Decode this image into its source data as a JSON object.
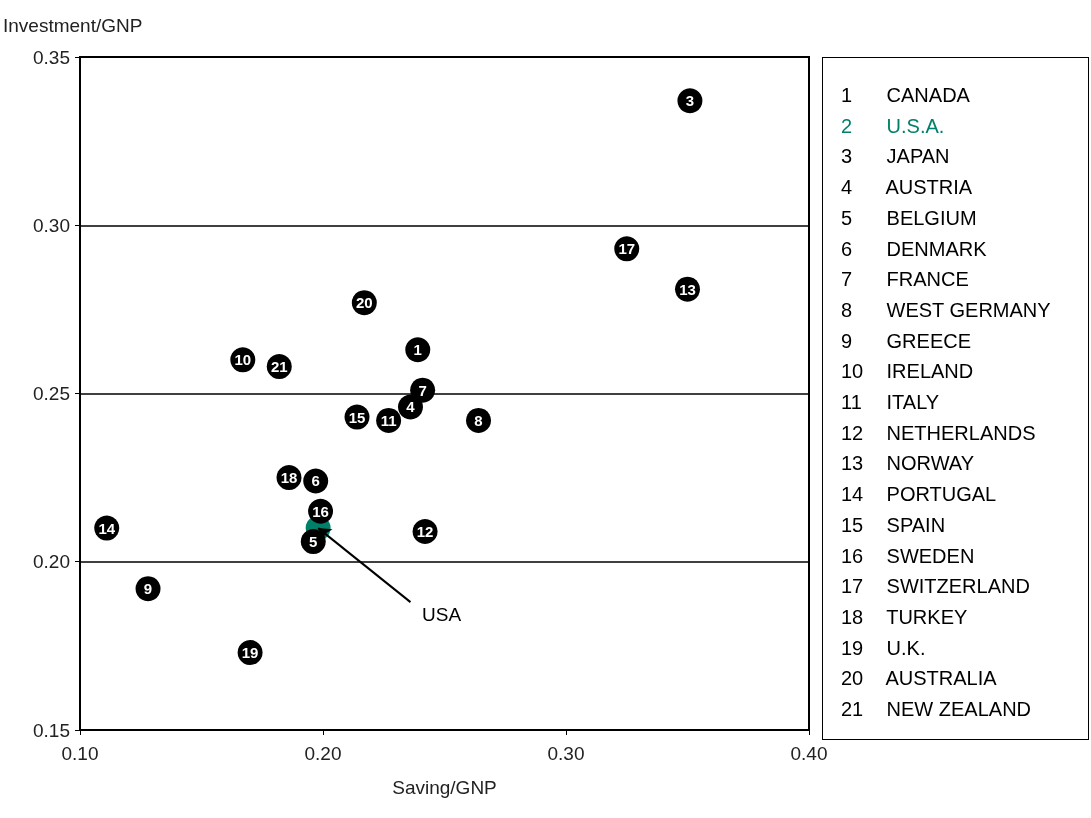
{
  "chart_data": {
    "type": "scatter",
    "xlabel": "Saving/GNP",
    "ylabel": "Investment/GNP",
    "xlim": [
      0.1,
      0.4
    ],
    "ylim": [
      0.15,
      0.35
    ],
    "xticks": [
      {
        "value": 0.1,
        "label": "0.10"
      },
      {
        "value": 0.2,
        "label": "0.20"
      },
      {
        "value": 0.3,
        "label": "0.30"
      },
      {
        "value": 0.4,
        "label": "0.40"
      }
    ],
    "yticks": [
      {
        "value": 0.15,
        "label": "0.15"
      },
      {
        "value": 0.2,
        "label": "0.20"
      },
      {
        "value": 0.25,
        "label": "0.25"
      },
      {
        "value": 0.3,
        "label": "0.30"
      },
      {
        "value": 0.35,
        "label": "0.35"
      }
    ],
    "grid": "y",
    "marker": "circle",
    "annotations": [
      {
        "text": "USA",
        "x": 0.198,
        "y": 0.21
      },
      {
        "text": "1",
        "x": 0.239,
        "y": 0.263
      },
      {
        "text": "3",
        "x": 0.351,
        "y": 0.337
      },
      {
        "text": "4",
        "x": 0.236,
        "y": 0.246
      },
      {
        "text": "5",
        "x": 0.196,
        "y": 0.206
      },
      {
        "text": "6",
        "x": 0.197,
        "y": 0.224
      },
      {
        "text": "7",
        "x": 0.241,
        "y": 0.251
      },
      {
        "text": "8",
        "x": 0.264,
        "y": 0.242
      },
      {
        "text": "9",
        "x": 0.128,
        "y": 0.192
      },
      {
        "text": "10",
        "x": 0.167,
        "y": 0.26
      },
      {
        "text": "11",
        "x": 0.227,
        "y": 0.242
      },
      {
        "text": "12",
        "x": 0.242,
        "y": 0.209
      },
      {
        "text": "13",
        "x": 0.35,
        "y": 0.281
      },
      {
        "text": "14",
        "x": 0.111,
        "y": 0.21
      },
      {
        "text": "15",
        "x": 0.214,
        "y": 0.243
      },
      {
        "text": "16",
        "x": 0.199,
        "y": 0.215
      },
      {
        "text": "17",
        "x": 0.325,
        "y": 0.293
      },
      {
        "text": "18",
        "x": 0.186,
        "y": 0.225
      },
      {
        "text": "19",
        "x": 0.17,
        "y": 0.173
      },
      {
        "text": "20",
        "x": 0.217,
        "y": 0.277
      },
      {
        "text": "21",
        "x": 0.182,
        "y": 0.258
      },
      "1 CANADA",
      "2 U.S.A.",
      "3 JAPAN",
      "4 AUSTRIA",
      "5 BELGIUM",
      "6 DENMARK",
      "7 FRANCE",
      "8 WEST GERMANY",
      "9 GREECE",
      "10 IRELAND",
      "11 ITALY",
      "12 NETHERLANDS",
      "13 NORWAY",
      "14 PORTUGAL",
      "15 SPAIN",
      "16 SWEDEN",
      "17 SWITZERLAND",
      "18 TURKEY",
      "19 U.K.",
      "20 AUSTRALIA",
      "21 NEW ZEALAND"
    ],
    "x": [
      0.239,
      0.198,
      0.351,
      0.236,
      0.196,
      0.197,
      0.241,
      0.264,
      0.128,
      0.167,
      0.227,
      0.242,
      0.35,
      0.111,
      0.214,
      0.199,
      0.325,
      0.186,
      0.17,
      0.217,
      0.182
    ],
    "values": [
      0.263,
      0.21,
      0.337,
      0.246,
      0.206,
      0.224,
      0.251,
      0.242,
      0.192,
      0.26,
      0.242,
      0.209,
      0.281,
      0.21,
      0.243,
      0.215,
      0.293,
      0.225,
      0.173,
      0.277,
      0.258
    ],
    "colors": [
      "#000000",
      "#00806b",
      "#000000",
      "#000000",
      "#000000",
      "#000000",
      "#000000",
      "#000000",
      "#000000",
      "#000000",
      "#000000",
      "#000000",
      "#000000",
      "#000000",
      "#000000",
      "#000000",
      "#000000",
      "#000000",
      "#000000",
      "#000000",
      "#000000"
    ]
  }
}
